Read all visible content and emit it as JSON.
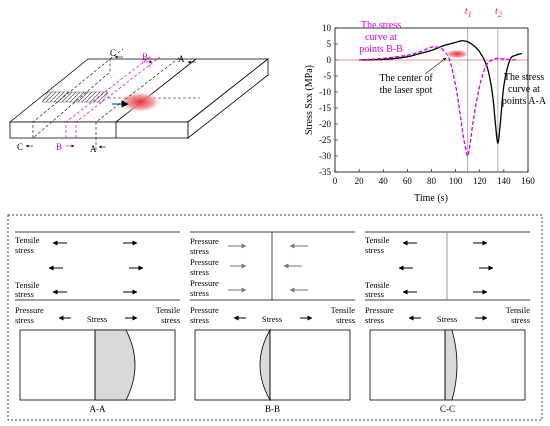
{
  "plate": {
    "section_labels": {
      "a": "A",
      "b": "B",
      "c": "C"
    }
  },
  "chart_data": {
    "type": "line",
    "xlabel": "Time (s)",
    "ylabel": "Stress Sxx (MPa)",
    "xlim": [
      0,
      160
    ],
    "ylim": [
      -35,
      10
    ],
    "xticks": [
      0,
      20,
      40,
      60,
      80,
      100,
      120,
      140,
      160
    ],
    "yticks": [
      10,
      5,
      0,
      -5,
      -10,
      -15,
      -20,
      -25,
      -30,
      -35
    ],
    "markers": [
      {
        "label": "t",
        "sub": "1",
        "x": 110
      },
      {
        "label": "t",
        "sub": "2",
        "x": 135
      }
    ],
    "series": [
      {
        "name": "The stress curve at points A-A",
        "color": "#000000",
        "style": "solid",
        "x": [
          20,
          40,
          60,
          70,
          80,
          90,
          100,
          105,
          110,
          115,
          120,
          125,
          128,
          131,
          133,
          135,
          137,
          140,
          145,
          150,
          155
        ],
        "y": [
          0,
          0.2,
          1,
          2,
          3,
          4.5,
          5.5,
          6,
          5.7,
          4.5,
          2.5,
          -1,
          -5,
          -12,
          -20,
          -26,
          -20,
          -8,
          0,
          1.5,
          2
        ]
      },
      {
        "name": "The stress curve at points B-B",
        "color": "#d400d4",
        "style": "dashed",
        "x": [
          20,
          40,
          60,
          70,
          80,
          85,
          90,
          95,
          100,
          103,
          106,
          108,
          110,
          112,
          115,
          120,
          125,
          130,
          135,
          140,
          150
        ],
        "y": [
          0,
          0.5,
          1.5,
          2.5,
          4,
          4,
          3,
          0,
          -8,
          -15,
          -23,
          -27,
          -30,
          -26,
          -18,
          -8,
          -2,
          0,
          0.5,
          0.3,
          0
        ]
      }
    ],
    "annotations": {
      "bb": [
        "The stress",
        "curve at",
        "points B-B"
      ],
      "spot": [
        "The center of",
        "the laser spot"
      ],
      "aa": [
        "The stress",
        "curve at",
        "points A-A"
      ]
    }
  },
  "panels": [
    {
      "title": "A-A",
      "top": {
        "l1": "Tensile",
        "l2": "stress",
        "l3": "Tensile",
        "l4": "stress"
      },
      "bottom": {
        "left": [
          "Pressure",
          "stress"
        ],
        "mid": "Stress",
        "right": [
          "Tensile",
          "stress"
        ]
      }
    },
    {
      "title": "B-B",
      "top": {
        "l1": "Pressure",
        "l2": "stress",
        "l3": "Pressure",
        "l4": "stress",
        "l5": "Pressure",
        "l6": "stress"
      },
      "bottom": {
        "left": [
          "Pressure",
          "stress"
        ],
        "mid": "Stress",
        "right": [
          "Tensile",
          "stress"
        ]
      }
    },
    {
      "title": "C-C",
      "top": {
        "l1": "Tensile",
        "l2": "stress",
        "l3": "Tensile",
        "l4": "stress"
      },
      "bottom": {
        "left": [
          "Pressure",
          "stress"
        ],
        "mid": "Stress",
        "right": [
          "Tensile",
          "stress"
        ]
      }
    }
  ]
}
